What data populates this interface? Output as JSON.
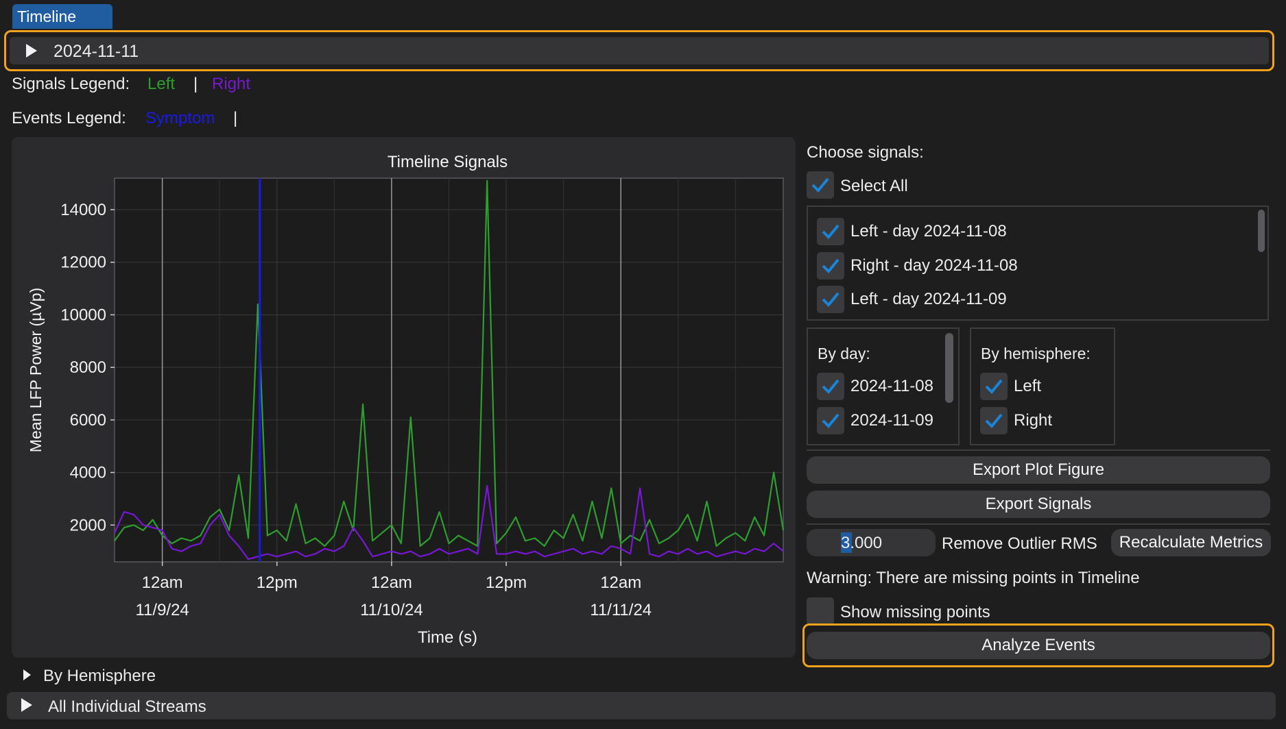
{
  "tab": {
    "label": "Timeline"
  },
  "header": {
    "date": "2024-11-11"
  },
  "legends": {
    "signals_label": "Signals Legend:",
    "signals": [
      {
        "name": "Left",
        "color": "#2e9e2e"
      },
      {
        "name": "Right",
        "color": "#7a16d8"
      }
    ],
    "separator": "|",
    "events_label": "Events Legend:",
    "events": [
      {
        "name": "Symptom",
        "color": "#1a1ae6"
      }
    ]
  },
  "chart_data": {
    "type": "line",
    "title": "Timeline Signals",
    "xlabel": "Time (s)",
    "ylabel": "Mean LFP Power (µVp)",
    "y_ticks": [
      "14000",
      "12000",
      "10000",
      "8000",
      "6000",
      "4000",
      "2000"
    ],
    "ylim": [
      600,
      15200
    ],
    "x_ticks": [
      {
        "time": "12am",
        "date": "11/9/24"
      },
      {
        "time": "12pm",
        "date": ""
      },
      {
        "time": "12am",
        "date": "11/10/24"
      },
      {
        "time": "12pm",
        "date": ""
      },
      {
        "time": "12am",
        "date": "11/11/24"
      }
    ],
    "grid": true,
    "colors": {
      "left": "#2e9e2e",
      "right": "#7a16d8",
      "event": "#1a1ae6"
    },
    "x_hours": [
      -5,
      -4,
      -3,
      -2,
      -1,
      0,
      1,
      2,
      3,
      4,
      5,
      6,
      7,
      8,
      9,
      10,
      11,
      12,
      13,
      14,
      15,
      16,
      17,
      18,
      19,
      20,
      21,
      22,
      23,
      24,
      25,
      26,
      27,
      28,
      29,
      30,
      31,
      32,
      33,
      34,
      35,
      36,
      37,
      38,
      39,
      40,
      41,
      42,
      43,
      44,
      45,
      46,
      47,
      48,
      49,
      50,
      51,
      52,
      53,
      54,
      55,
      56,
      57,
      58,
      59,
      60,
      61,
      62,
      63,
      64,
      65
    ],
    "series": [
      {
        "name": "Left",
        "values": [
          1400,
          1900,
          2000,
          1800,
          2200,
          1600,
          1300,
          1500,
          1400,
          1600,
          2300,
          2600,
          1800,
          3900,
          1500,
          10400,
          1600,
          1800,
          1400,
          2800,
          1300,
          1500,
          1200,
          1600,
          2900,
          1800,
          6600,
          1400,
          1700,
          2000,
          1300,
          6100,
          1200,
          1500,
          2500,
          1300,
          1600,
          1400,
          1200,
          15100,
          1300,
          1700,
          2300,
          1400,
          1500,
          1200,
          1800,
          1500,
          2400,
          1400,
          2900,
          1500,
          3400,
          1300,
          1600,
          1400,
          2200,
          1300,
          1500,
          1800,
          2400,
          1400,
          2900,
          1200,
          1500,
          1700,
          1400,
          2300,
          1600,
          4000,
          1800
        ]
      },
      {
        "name": "Right",
        "values": [
          1700,
          2500,
          2400,
          2000,
          1900,
          1800,
          1100,
          1000,
          1200,
          1300,
          2000,
          2400,
          1600,
          1200,
          700,
          800,
          900,
          800,
          900,
          1000,
          800,
          900,
          1100,
          1000,
          1200,
          1900,
          1400,
          800,
          900,
          1000,
          900,
          1000,
          800,
          900,
          1100,
          900,
          1000,
          1100,
          900,
          3500,
          900,
          900,
          1000,
          900,
          1000,
          800,
          900,
          1000,
          1100,
          900,
          1000,
          900,
          1200,
          1100,
          900,
          3400,
          900,
          800,
          1000,
          900,
          1100,
          900,
          1000,
          800,
          900,
          1000,
          900,
          1100,
          1000,
          1300,
          1000
        ]
      }
    ],
    "events": [
      {
        "name": "Symptom",
        "hour": 10.2,
        "value": 15200
      }
    ]
  },
  "signals": {
    "choose_label": "Choose signals:",
    "select_all_label": "Select All",
    "items": [
      "Left - day 2024-11-08",
      "Right - day 2024-11-08",
      "Left - day 2024-11-09"
    ],
    "by_day_label": "By day:",
    "by_day_items": [
      "2024-11-08",
      "2024-11-09"
    ],
    "by_hemisphere_label": "By hemisphere:",
    "by_hemisphere_items": [
      "Left",
      "Right"
    ]
  },
  "actions": {
    "export_plot": "Export Plot Figure",
    "export_signals": "Export Signals",
    "rms_value": "3.000",
    "rms_label": "Remove Outlier RMS",
    "recalculate": "Recalculate Metrics",
    "warning": "Warning: There are missing points in Timeline",
    "show_missing": "Show missing points",
    "analyze": "Analyze Events"
  },
  "sections": {
    "by_hemisphere": "By Hemisphere",
    "individual_streams": "All Individual Streams"
  }
}
